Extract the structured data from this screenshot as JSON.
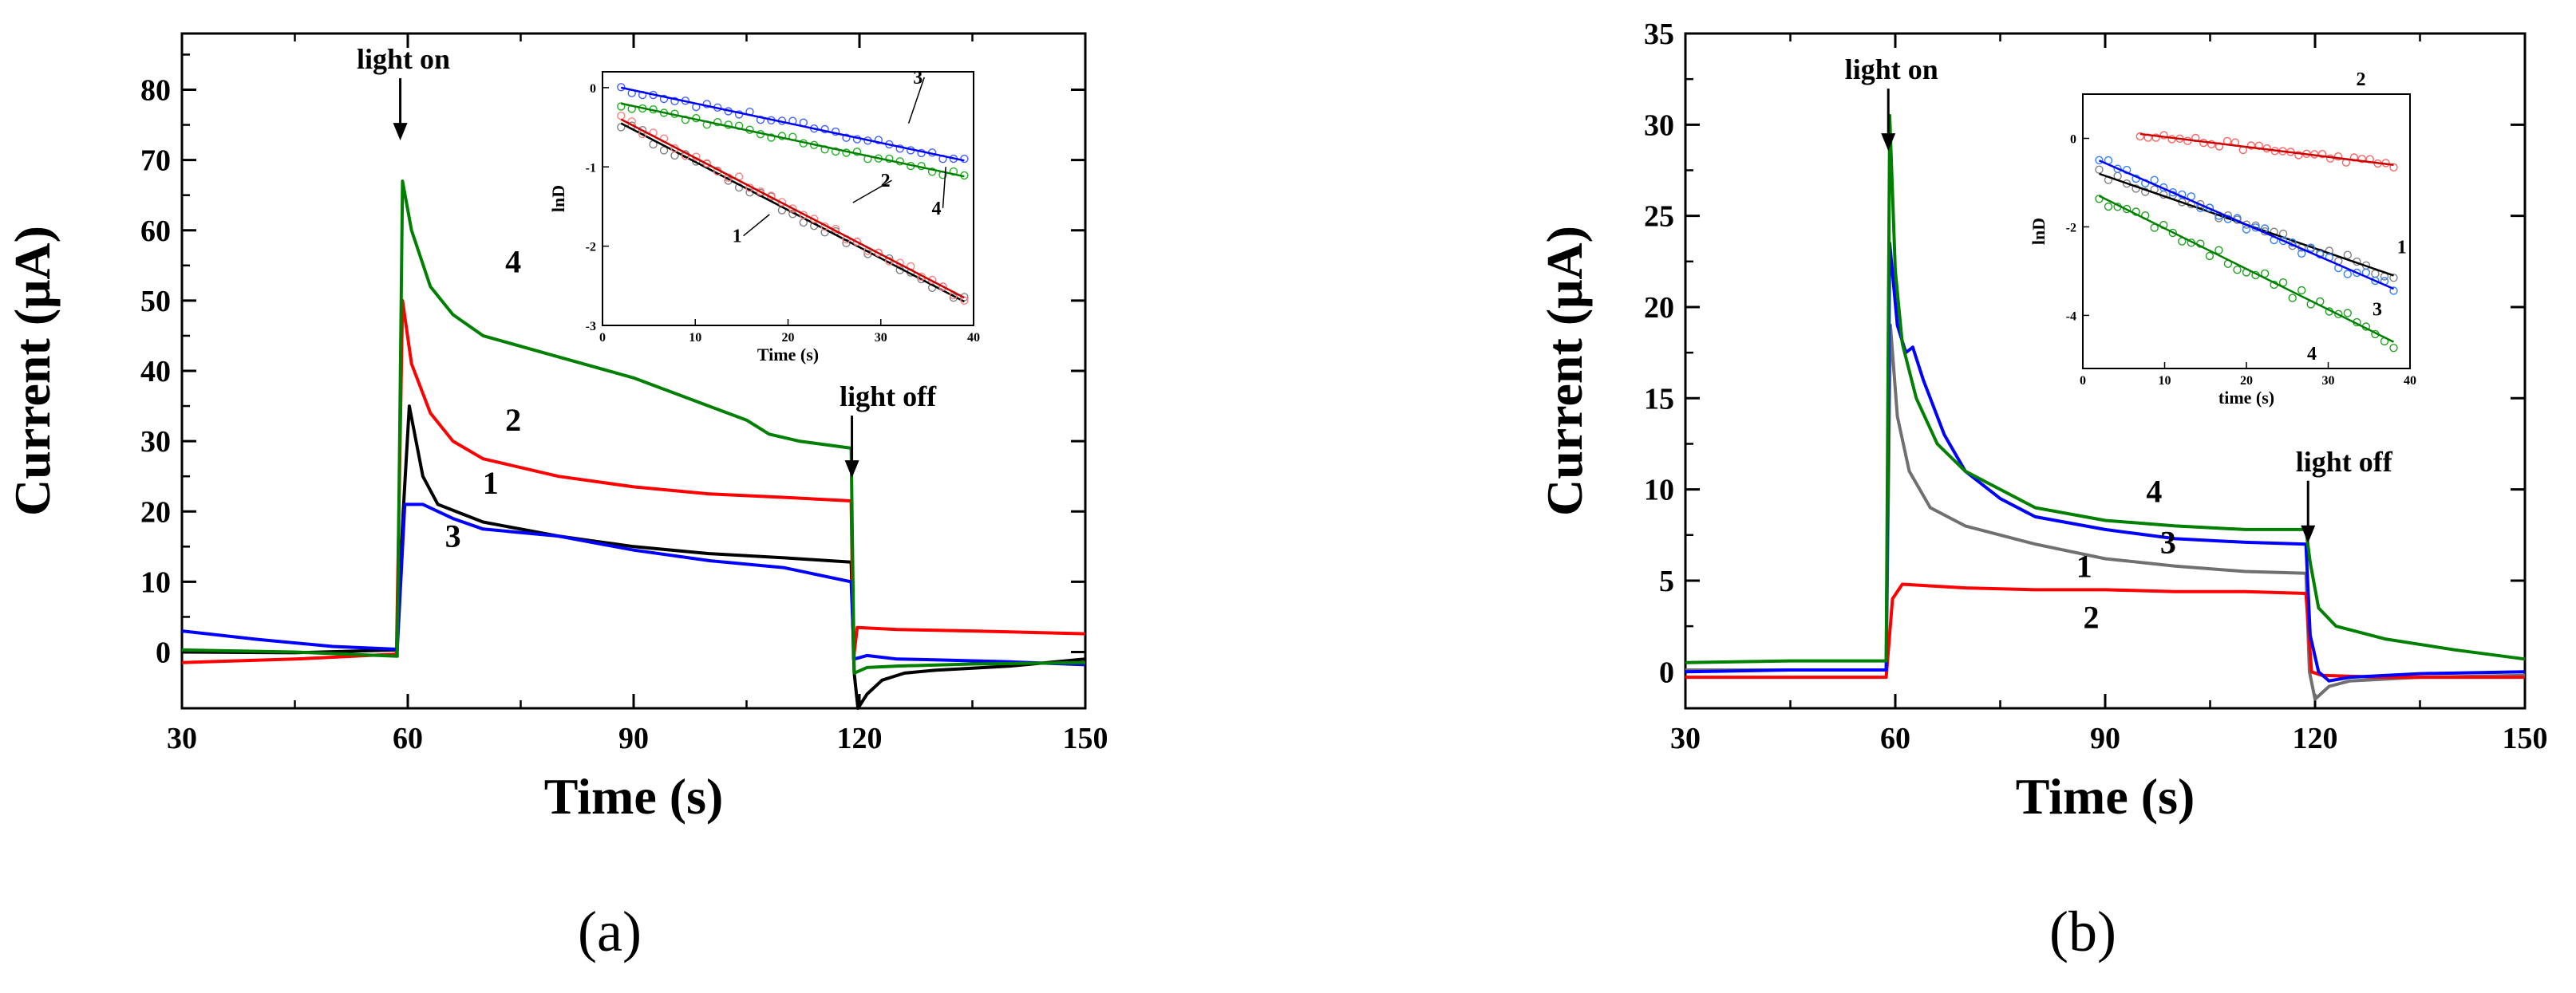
{
  "chart_data": [
    {
      "type": "line",
      "panel_label": "(a)",
      "xlabel": "Time (s)",
      "ylabel": "Current (μA)",
      "xlim": [
        30,
        150
      ],
      "ylim": [
        -8,
        88
      ],
      "xticks": [
        30,
        60,
        90,
        120,
        150
      ],
      "yticks": [
        0,
        10,
        20,
        30,
        40,
        50,
        60,
        70,
        80
      ],
      "annotations": [
        {
          "text": "light on",
          "x": 59,
          "y": 83
        },
        {
          "text": "light off",
          "x": 119,
          "y": 35
        }
      ],
      "series": [
        {
          "name": "1",
          "color": "#000000",
          "label_at": [
            71,
            22.5
          ],
          "points": [
            [
              30,
              0
            ],
            [
              45,
              -0.1
            ],
            [
              58.5,
              0.3
            ],
            [
              59.4,
              20
            ],
            [
              60.2,
              35
            ],
            [
              62,
              25
            ],
            [
              64,
              21
            ],
            [
              70,
              18.5
            ],
            [
              80,
              16.5
            ],
            [
              90,
              15
            ],
            [
              100,
              14
            ],
            [
              110,
              13.4
            ],
            [
              118.9,
              12.8
            ],
            [
              119.3,
              -3
            ],
            [
              119.8,
              -8
            ],
            [
              121,
              -6
            ],
            [
              123,
              -4
            ],
            [
              126,
              -3
            ],
            [
              130,
              -2.6
            ],
            [
              140,
              -2
            ],
            [
              150,
              -1
            ]
          ]
        },
        {
          "name": "2",
          "color": "#ff0000",
          "label_at": [
            74,
            31.5
          ],
          "points": [
            [
              30,
              -1.5
            ],
            [
              45,
              -1
            ],
            [
              58.5,
              -0.3
            ],
            [
              59.3,
              50
            ],
            [
              60.5,
              41
            ],
            [
              63,
              34
            ],
            [
              66,
              30
            ],
            [
              70,
              27.5
            ],
            [
              80,
              25
            ],
            [
              90,
              23.5
            ],
            [
              100,
              22.5
            ],
            [
              110,
              22
            ],
            [
              118.9,
              21.5
            ],
            [
              119.2,
              -1
            ],
            [
              119.7,
              3.5
            ],
            [
              125,
              3.2
            ],
            [
              135,
              3
            ],
            [
              150,
              2.6
            ]
          ]
        },
        {
          "name": "3",
          "color": "#0000ff",
          "label_at": [
            66,
            15
          ],
          "points": [
            [
              30,
              3
            ],
            [
              40,
              1.8
            ],
            [
              50,
              0.8
            ],
            [
              58.6,
              0.4
            ],
            [
              59.6,
              21
            ],
            [
              62,
              21
            ],
            [
              66,
              19
            ],
            [
              70,
              17.5
            ],
            [
              80,
              16.5
            ],
            [
              90,
              14.5
            ],
            [
              100,
              13
            ],
            [
              110,
              12
            ],
            [
              118.9,
              10
            ],
            [
              119.3,
              -1
            ],
            [
              121,
              -0.5
            ],
            [
              125,
              -1
            ],
            [
              130,
              -1.1
            ],
            [
              140,
              -1.4
            ],
            [
              150,
              -1.8
            ]
          ]
        },
        {
          "name": "4",
          "color": "#008000",
          "label_at": [
            74,
            54
          ],
          "points": [
            [
              30,
              0.3
            ],
            [
              45,
              0
            ],
            [
              58.6,
              -0.6
            ],
            [
              59.3,
              67
            ],
            [
              60.5,
              60
            ],
            [
              63,
              52
            ],
            [
              66,
              48
            ],
            [
              70,
              45
            ],
            [
              80,
              42
            ],
            [
              90,
              39
            ],
            [
              100,
              35
            ],
            [
              105,
              33
            ],
            [
              108,
              31
            ],
            [
              112,
              30
            ],
            [
              118.9,
              29
            ],
            [
              119.3,
              -3
            ],
            [
              121,
              -2.2
            ],
            [
              125,
              -2
            ],
            [
              135,
              -1.7
            ],
            [
              150,
              -1.5
            ]
          ]
        }
      ],
      "inset": {
        "xlabel": "Time (s)",
        "ylabel": "lnD",
        "xlim": [
          0,
          40
        ],
        "ylim": [
          -3,
          0.2
        ],
        "xticks": [
          0,
          10,
          20,
          30,
          40
        ],
        "yticks": [
          -3,
          -2,
          -1,
          0
        ],
        "series": [
          {
            "name": "1",
            "color": "#808080",
            "fit_color": "#000000",
            "fit": [
              [
                2,
                -0.45
              ],
              [
                39,
                -2.7
              ]
            ],
            "spread": 0.06,
            "label_at": [
              14.5,
              -1.95
            ],
            "arrow_to": [
              18,
              -1.6
            ]
          },
          {
            "name": "2",
            "color": "#ff8080",
            "fit_color": "#cc0000",
            "fit": [
              [
                2,
                -0.4
              ],
              [
                39,
                -2.65
              ]
            ],
            "spread": 0.05,
            "label_at": [
              30.5,
              -1.25
            ],
            "arrow_to": [
              27,
              -1.45
            ]
          },
          {
            "name": "3",
            "color": "#4060ff",
            "fit_color": "#0000ff",
            "fit": [
              [
                2,
                0
              ],
              [
                39,
                -0.92
              ]
            ],
            "spread": 0.05,
            "label_at": [
              34,
              0.05
            ],
            "arrow_to": [
              33,
              -0.45
            ]
          },
          {
            "name": "4",
            "color": "#20b020",
            "fit_color": "#008000",
            "fit": [
              [
                2,
                -0.2
              ],
              [
                39,
                -1.12
              ]
            ],
            "spread": 0.04,
            "label_at": [
              36,
              -1.6
            ],
            "arrow_to": [
              37,
              -1.0
            ]
          }
        ]
      }
    },
    {
      "type": "line",
      "panel_label": "(b)",
      "xlabel": "Time (s)",
      "ylabel": "Current (μA)",
      "xlim": [
        30,
        150
      ],
      "ylim": [
        -2,
        35
      ],
      "xticks": [
        30,
        60,
        90,
        120,
        150
      ],
      "yticks": [
        0,
        5,
        10,
        15,
        20,
        25,
        30,
        35
      ],
      "annotations": [
        {
          "text": "light on",
          "x": 59,
          "y": 32.5
        },
        {
          "text": "light off",
          "x": 119,
          "y": 11
        }
      ],
      "series": [
        {
          "name": "1",
          "color": "#707070",
          "label_at": [
            87,
            5.2
          ],
          "points": [
            [
              30,
              0.1
            ],
            [
              45,
              0.1
            ],
            [
              58.7,
              0.1
            ],
            [
              59.3,
              19
            ],
            [
              60.3,
              14
            ],
            [
              62,
              11
            ],
            [
              65,
              9
            ],
            [
              70,
              8
            ],
            [
              80,
              7
            ],
            [
              90,
              6.2
            ],
            [
              100,
              5.8
            ],
            [
              110,
              5.5
            ],
            [
              118.7,
              5.4
            ],
            [
              119.2,
              0
            ],
            [
              120,
              -1.5
            ],
            [
              122,
              -0.8
            ],
            [
              125,
              -0.5
            ],
            [
              135,
              -0.3
            ],
            [
              150,
              -0.2
            ]
          ]
        },
        {
          "name": "2",
          "color": "#ff0000",
          "label_at": [
            88,
            2.4
          ],
          "points": [
            [
              30,
              -0.3
            ],
            [
              45,
              -0.3
            ],
            [
              58.7,
              -0.3
            ],
            [
              59.6,
              4
            ],
            [
              61,
              4.8
            ],
            [
              70,
              4.6
            ],
            [
              80,
              4.5
            ],
            [
              90,
              4.5
            ],
            [
              100,
              4.4
            ],
            [
              110,
              4.4
            ],
            [
              118.7,
              4.3
            ],
            [
              119.5,
              0
            ],
            [
              121,
              -0.2
            ],
            [
              130,
              -0.3
            ],
            [
              150,
              -0.3
            ]
          ]
        },
        {
          "name": "3",
          "color": "#0000ff",
          "label_at": [
            99,
            6.5
          ],
          "points": [
            [
              30,
              0
            ],
            [
              45,
              0.1
            ],
            [
              58.7,
              0.1
            ],
            [
              59.2,
              23.5
            ],
            [
              60.3,
              19
            ],
            [
              61.5,
              17.5
            ],
            [
              62.5,
              17.8
            ],
            [
              64,
              16
            ],
            [
              67,
              13
            ],
            [
              70,
              11
            ],
            [
              75,
              9.5
            ],
            [
              80,
              8.5
            ],
            [
              90,
              7.8
            ],
            [
              100,
              7.3
            ],
            [
              110,
              7.1
            ],
            [
              118.7,
              7
            ],
            [
              119.3,
              2
            ],
            [
              120.5,
              0
            ],
            [
              122,
              -0.5
            ],
            [
              125,
              -0.3
            ],
            [
              135,
              -0.1
            ],
            [
              150,
              0
            ]
          ]
        },
        {
          "name": "4",
          "color": "#008000",
          "label_at": [
            97,
            9.3
          ],
          "points": [
            [
              30,
              0.5
            ],
            [
              45,
              0.6
            ],
            [
              58.7,
              0.6
            ],
            [
              59.2,
              30.5
            ],
            [
              60,
              22
            ],
            [
              61,
              18
            ],
            [
              63,
              15
            ],
            [
              66,
              12.5
            ],
            [
              70,
              11
            ],
            [
              75,
              10
            ],
            [
              80,
              9
            ],
            [
              90,
              8.3
            ],
            [
              100,
              8
            ],
            [
              110,
              7.8
            ],
            [
              118.7,
              7.8
            ],
            [
              119.3,
              6
            ],
            [
              120.5,
              3.5
            ],
            [
              123,
              2.5
            ],
            [
              130,
              1.8
            ],
            [
              140,
              1.2
            ],
            [
              150,
              0.7
            ]
          ]
        }
      ],
      "inset": {
        "xlabel": "time (s)",
        "ylabel": "lnD",
        "xlim": [
          0,
          40
        ],
        "ylim": [
          -5.2,
          1
        ],
        "xticks": [
          0,
          10,
          20,
          30,
          40
        ],
        "yticks": [
          -4,
          -2,
          0
        ],
        "series": [
          {
            "name": "1",
            "color": "#808080",
            "fit_color": "#000000",
            "fit": [
              [
                2,
                -0.8
              ],
              [
                38,
                -3.1
              ]
            ],
            "spread": 0.12,
            "label_at": [
              39,
              -2.6
            ],
            "arrow_to": null
          },
          {
            "name": "2",
            "color": "#ff6060",
            "fit_color": "#cc0000",
            "fit": [
              [
                7,
                0.1
              ],
              [
                38,
                -0.6
              ]
            ],
            "spread": 0.08,
            "label_at": [
              34,
              1.2
            ],
            "arrow_to": null
          },
          {
            "name": "3",
            "color": "#3080ff",
            "fit_color": "#0000ff",
            "fit": [
              [
                2,
                -0.5
              ],
              [
                38,
                -3.4
              ]
            ],
            "spread": 0.12,
            "label_at": [
              36,
              -4.0
            ],
            "arrow_to": null
          },
          {
            "name": "4",
            "color": "#20a020",
            "fit_color": "#008000",
            "fit": [
              [
                2,
                -1.3
              ],
              [
                38,
                -4.6
              ]
            ],
            "spread": 0.15,
            "label_at": [
              28,
              -5.0
            ],
            "arrow_to": null
          }
        ]
      }
    }
  ]
}
